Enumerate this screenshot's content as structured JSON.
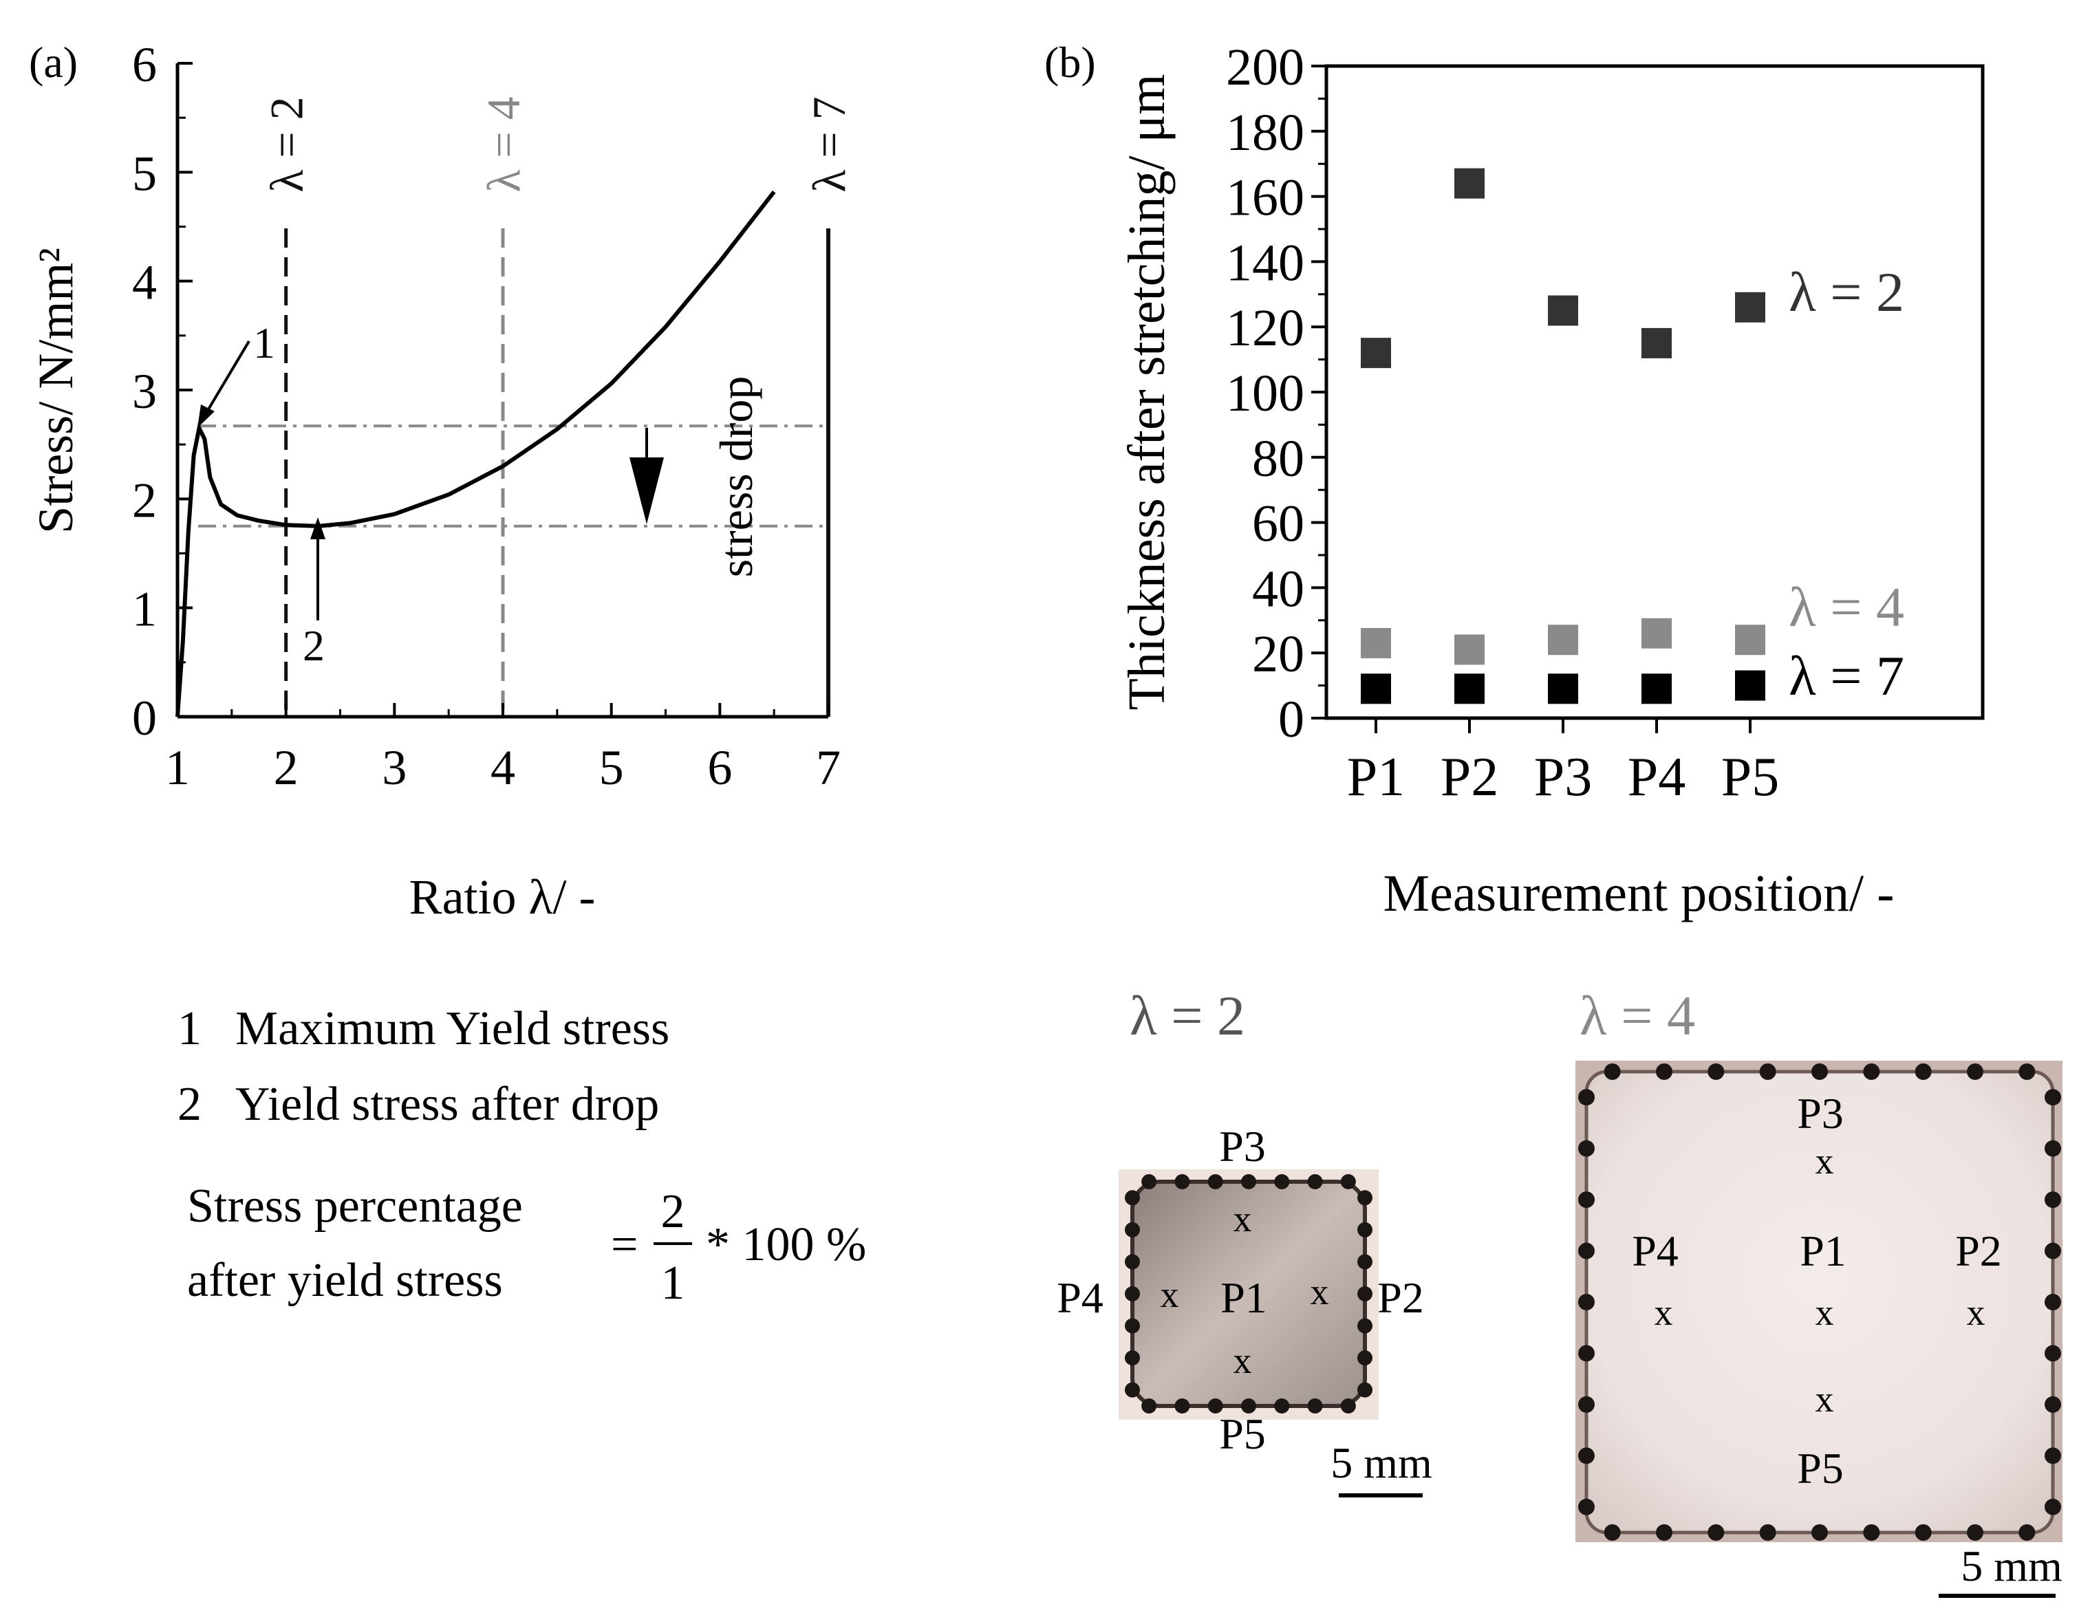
{
  "panel_a": {
    "label": "(a)",
    "ylabel": "Stress/ N/mm²",
    "xlabel": "Ratio λ/ -",
    "markers": [
      {
        "text": "λ = 2",
        "x": 2,
        "color": "#111111",
        "style": "dashed"
      },
      {
        "text": "λ = 4",
        "x": 4,
        "color": "#888888",
        "style": "dashed"
      },
      {
        "text": "λ = 7",
        "x": 7,
        "color": "#111111",
        "style": "solid"
      }
    ],
    "point1_label": "1",
    "point2_label": "2",
    "stress_drop_label": "stress drop",
    "legend": {
      "item1_num": "1",
      "item1_text": "Maximum Yield stress",
      "item2_num": "2",
      "item2_text": "Yield stress after drop"
    },
    "formula": {
      "line1": "Stress percentage",
      "line2": "after yield stress",
      "equals": "=",
      "numerator": "2",
      "denominator": "1",
      "tail": "* 100 %"
    }
  },
  "panel_b": {
    "label": "(b)",
    "ylabel": "Thickness after stretching/ μm",
    "xlabel": "Measurement position/ -",
    "series_labels": [
      {
        "text": "λ = 2",
        "color": "#333333"
      },
      {
        "text": "λ = 4",
        "color": "#8a8a8a"
      },
      {
        "text": "λ = 7",
        "color": "#000000"
      }
    ]
  },
  "photos": {
    "left": {
      "title": "λ = 2",
      "labels": {
        "top": "P3",
        "left": "P4",
        "center": "P1",
        "right": "P2",
        "bottom": "P5"
      },
      "mark": "x",
      "scale": "5 mm"
    },
    "right": {
      "title": "λ = 4",
      "labels": {
        "top": "P3",
        "left": "P4",
        "center": "P1",
        "right": "P2",
        "bottom": "P5"
      },
      "mark": "x",
      "scale": "5 mm"
    }
  },
  "chart_data": [
    {
      "type": "line",
      "xlim": [
        1,
        7
      ],
      "ylim": [
        0,
        6
      ],
      "xticks": [
        1,
        2,
        3,
        4,
        5,
        6,
        7
      ],
      "yticks": [
        0,
        1,
        2,
        3,
        4,
        5,
        6
      ],
      "grid": false,
      "series": [
        {
          "x": [
            1.0,
            1.05,
            1.1,
            1.15,
            1.2,
            1.25,
            1.3,
            1.4,
            1.55,
            1.75,
            2.0,
            2.3,
            2.6,
            3.0,
            3.5,
            4.0,
            4.5,
            5.0,
            5.5,
            6.0,
            6.5
          ],
          "y": [
            0.0,
            0.7,
            1.7,
            2.4,
            2.65,
            2.55,
            2.2,
            1.95,
            1.85,
            1.8,
            1.76,
            1.75,
            1.78,
            1.86,
            2.04,
            2.3,
            2.64,
            3.06,
            3.58,
            4.18,
            4.82
          ]
        }
      ],
      "hlines": [
        2.67,
        1.75
      ],
      "vlines": [
        2,
        4,
        7
      ]
    },
    {
      "type": "scatter",
      "categories": [
        "P1",
        "P2",
        "P3",
        "P4",
        "P5"
      ],
      "ylim": [
        0,
        200
      ],
      "yticks": [
        0,
        20,
        40,
        60,
        80,
        100,
        120,
        140,
        160,
        180,
        200
      ],
      "grid": false,
      "series": [
        {
          "name": "λ = 2",
          "values": [
            112,
            164,
            125,
            115,
            126
          ],
          "color": "#333333"
        },
        {
          "name": "λ = 4",
          "values": [
            23,
            21,
            24,
            26,
            24
          ],
          "color": "#8a8a8a"
        },
        {
          "name": "λ = 7",
          "values": [
            9,
            9,
            9,
            9,
            10
          ],
          "color": "#000000"
        }
      ]
    }
  ]
}
